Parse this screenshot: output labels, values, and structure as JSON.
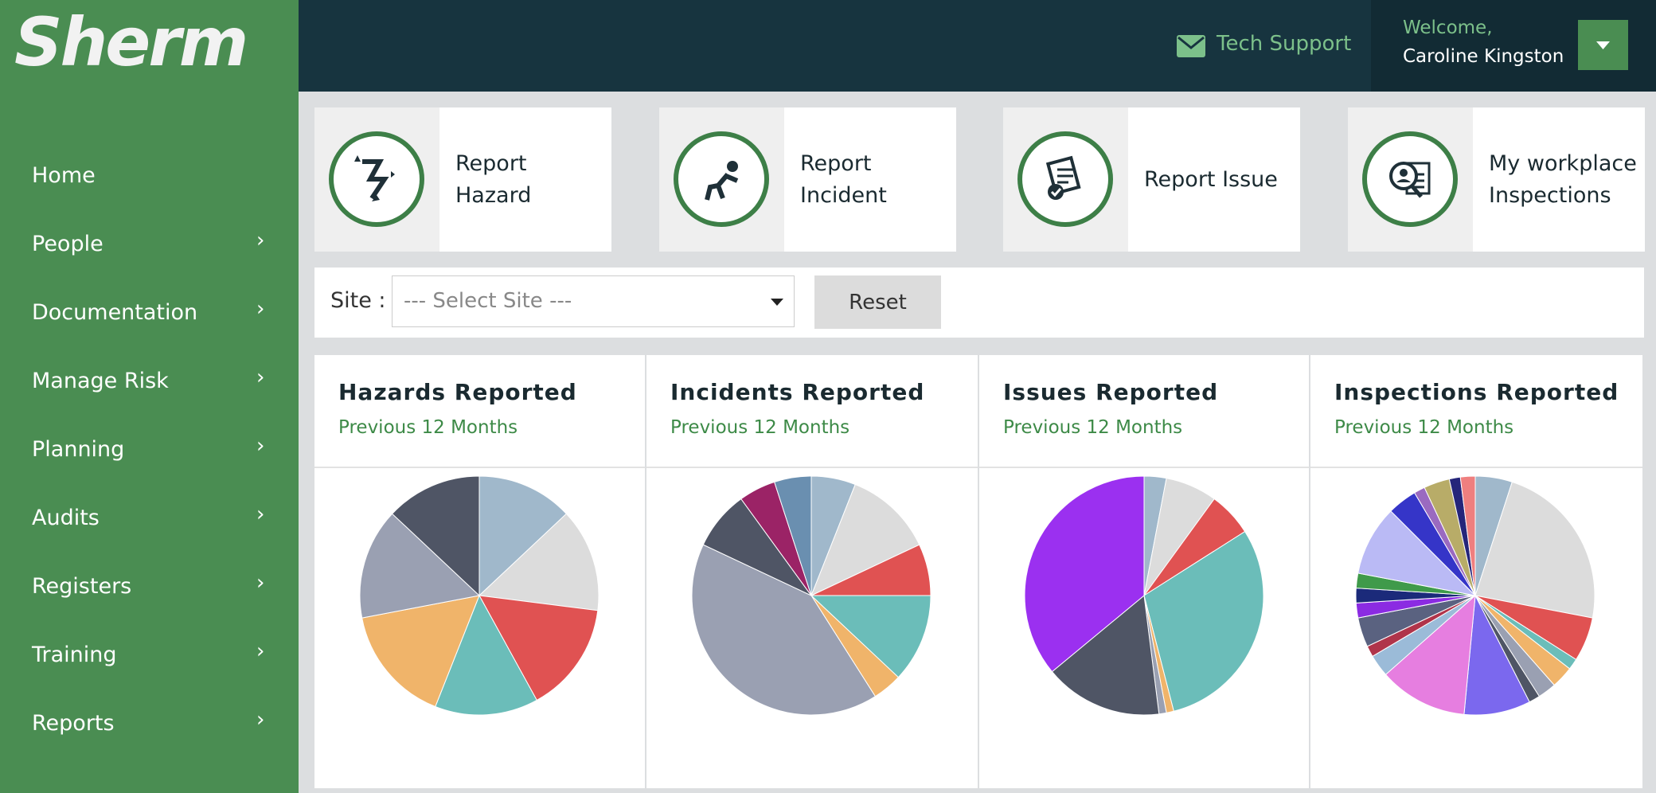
{
  "header": {
    "logo": "Sherm",
    "support": "Tech Support",
    "welcome": "Welcome,",
    "user": "Caroline Kingston"
  },
  "sidebar": {
    "items": [
      "Home",
      "People",
      "Documentation",
      "Manage Risk",
      "Planning",
      "Audits",
      "Registers",
      "Training",
      "Reports"
    ]
  },
  "tiles": [
    "Report Hazard",
    "Report Incident",
    "Report Issue",
    "My workplace Inspections"
  ],
  "filter": {
    "label": "Site :",
    "placeholder": "--- Select Site ---",
    "reset": "Reset"
  },
  "chart_data": [
    {
      "type": "pie",
      "title": "Hazards Reported",
      "subtitle": "Previous 12 Months",
      "values": [
        13,
        14,
        15,
        14,
        16,
        15,
        13
      ],
      "colors": [
        "#a0b8cb",
        "#dcdcdc",
        "#e05252",
        "#6bbdb9",
        "#f0b46a",
        "#9aa0b2",
        "#4f5565"
      ]
    },
    {
      "type": "pie",
      "title": "Incidents Reported",
      "subtitle": "Previous 12 Months",
      "values": [
        6,
        12,
        7,
        12,
        4,
        41,
        8,
        5,
        5
      ],
      "colors": [
        "#a0b8cb",
        "#dcdcdc",
        "#e05252",
        "#6bbdb9",
        "#f0b46a",
        "#9aa0b2",
        "#4f5565",
        "#9b2366",
        "#6a8fb0"
      ]
    },
    {
      "type": "pie",
      "title": "Issues Reported",
      "subtitle": "Previous 12 Months",
      "values": [
        3,
        7,
        6,
        30,
        1,
        1,
        16,
        36
      ],
      "colors": [
        "#a0b8cb",
        "#dcdcdc",
        "#e05252",
        "#6bbdb9",
        "#f0b46a",
        "#9aa0b2",
        "#4f5565",
        "#9b30f0"
      ]
    },
    {
      "type": "pie",
      "title": "Inspections Reported",
      "subtitle": "Previous 12 Months",
      "values": [
        5,
        23,
        6,
        1.5,
        3,
        2.5,
        1.5,
        9,
        12,
        3,
        1.5,
        4,
        2,
        2,
        2,
        9.5,
        4,
        1.5,
        3.5,
        1.5,
        2
      ],
      "colors": [
        "#a0b8cb",
        "#dcdcdc",
        "#e05252",
        "#6bbdb9",
        "#f0b46a",
        "#9aa0b2",
        "#4f5565",
        "#7b68ee",
        "#e67ee0",
        "#9bbbd8",
        "#b0344a",
        "#5a6280",
        "#8b2be2",
        "#1b2a7a",
        "#3f9a4a",
        "#babaf5",
        "#3535c8",
        "#9a6ac0",
        "#b8ac68",
        "#25257a",
        "#ef7f7f"
      ]
    }
  ]
}
